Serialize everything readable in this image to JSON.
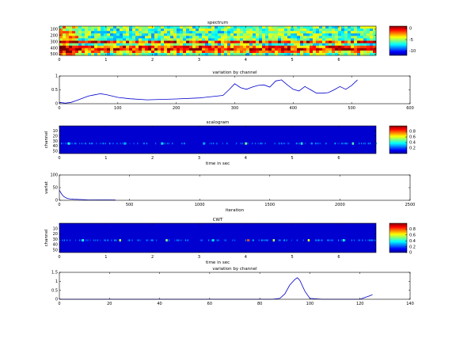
{
  "chart_data": [
    {
      "type": "heatmap",
      "title": "spectrum",
      "xlabel": "",
      "ylabel": "",
      "xlim": [
        0,
        6.8
      ],
      "xticks": [
        0,
        1,
        2,
        3,
        4,
        5,
        6
      ],
      "yticks": [
        100,
        200,
        300,
        400,
        500
      ],
      "ylim": [
        50,
        520
      ],
      "colorbar": {
        "ticks": [
          0,
          -5,
          -10
        ],
        "range": [
          -12,
          1
        ]
      },
      "bands": [
        {
          "y": 300,
          "value": -1
        },
        {
          "y": 390,
          "value": -1
        },
        {
          "y": 430,
          "value": 0
        },
        {
          "y": 470,
          "value": -2
        }
      ]
    },
    {
      "type": "line",
      "title": "variation by channel",
      "xlabel": "",
      "ylabel": "",
      "xlim": [
        0,
        600
      ],
      "ylim": [
        0,
        1
      ],
      "xticks": [
        0,
        100,
        200,
        300,
        400,
        500,
        600
      ],
      "yticks": [
        0,
        0.5,
        1
      ],
      "series": [
        {
          "x": [
            0,
            10,
            20,
            30,
            40,
            50,
            60,
            70,
            80,
            100,
            120,
            150,
            200,
            240,
            280,
            290,
            300,
            310,
            320,
            330,
            340,
            350,
            360,
            370,
            380,
            390,
            400,
            410,
            420,
            430,
            440,
            450,
            460,
            470,
            480,
            490,
            500,
            510
          ],
          "y": [
            0.05,
            0.02,
            0.05,
            0.12,
            0.2,
            0.28,
            0.32,
            0.36,
            0.33,
            0.23,
            0.18,
            0.14,
            0.17,
            0.21,
            0.3,
            0.5,
            0.72,
            0.58,
            0.52,
            0.6,
            0.66,
            0.68,
            0.6,
            0.82,
            0.86,
            0.68,
            0.52,
            0.46,
            0.62,
            0.5,
            0.38,
            0.38,
            0.4,
            0.5,
            0.62,
            0.52,
            0.66,
            0.86
          ]
        }
      ]
    },
    {
      "type": "heatmap",
      "title": "scalogram",
      "xlabel": "time in sec",
      "ylabel": "channel",
      "xlim": [
        0,
        6.8
      ],
      "xticks": [
        0,
        1,
        2,
        3,
        4,
        5,
        6
      ],
      "yticks": [
        10,
        20,
        30,
        40,
        50
      ],
      "ylim": [
        0,
        55
      ],
      "colorbar": {
        "ticks": [
          0.8,
          0.6,
          0.4,
          0.2
        ],
        "range": [
          0,
          1
        ]
      },
      "events": [
        {
          "x": 0.2,
          "y": 35,
          "value": 0.4
        },
        {
          "x": 1.4,
          "y": 35,
          "value": 0.3
        },
        {
          "x": 2.2,
          "y": 35,
          "value": 0.35
        },
        {
          "x": 3.1,
          "y": 35,
          "value": 0.3
        },
        {
          "x": 4.0,
          "y": 35,
          "value": 0.5
        },
        {
          "x": 5.2,
          "y": 35,
          "value": 0.4
        },
        {
          "x": 6.3,
          "y": 35,
          "value": 0.45
        }
      ]
    },
    {
      "type": "line",
      "title": "",
      "xlabel": "iteration",
      "ylabel": "varlat",
      "xlim": [
        0,
        2500
      ],
      "ylim": [
        0,
        100
      ],
      "xticks": [
        0,
        500,
        1000,
        1500,
        2000,
        2500
      ],
      "yticks": [
        0,
        50,
        100
      ],
      "series": [
        {
          "x": [
            0,
            10,
            20,
            30,
            40,
            50,
            60,
            80,
            100,
            150,
            200,
            300,
            400
          ],
          "y": [
            40,
            30,
            22,
            16,
            12,
            9,
            7,
            5,
            4,
            3,
            2,
            1.5,
            1
          ]
        }
      ]
    },
    {
      "type": "heatmap",
      "title": "CWT",
      "xlabel": "time in sec",
      "ylabel": "channel",
      "xlim": [
        0,
        6.8
      ],
      "xticks": [
        0,
        1,
        2,
        3,
        4,
        5,
        6
      ],
      "yticks": [
        10,
        20,
        30,
        40,
        50
      ],
      "ylim": [
        0,
        55
      ],
      "colorbar": {
        "ticks": [
          0.8,
          0.6,
          0.4,
          0.2,
          0
        ],
        "range": [
          0,
          1
        ]
      },
      "events": [
        {
          "x": 0.5,
          "y": 32,
          "value": 0.4
        },
        {
          "x": 1.3,
          "y": 32,
          "value": 0.55
        },
        {
          "x": 2.3,
          "y": 32,
          "value": 0.5
        },
        {
          "x": 3.3,
          "y": 32,
          "value": 0.35
        },
        {
          "x": 4.05,
          "y": 32,
          "value": 0.8
        },
        {
          "x": 4.6,
          "y": 32,
          "value": 0.55
        },
        {
          "x": 5.35,
          "y": 32,
          "value": 0.6
        },
        {
          "x": 6.1,
          "y": 32,
          "value": 0.4
        }
      ]
    },
    {
      "type": "line",
      "title": "variation by channel",
      "xlabel": "",
      "ylabel": "",
      "xlim": [
        0,
        140
      ],
      "ylim": [
        0,
        1.5
      ],
      "xticks": [
        0,
        20,
        40,
        60,
        80,
        100,
        120,
        140
      ],
      "yticks": [
        0,
        0.5,
        1,
        1.5
      ],
      "series": [
        {
          "x": [
            0,
            60,
            85,
            88,
            90,
            92,
            94,
            95,
            96,
            98,
            100,
            105,
            115,
            118,
            120,
            121,
            122,
            123,
            124,
            125
          ],
          "y": [
            0,
            0,
            0,
            0.05,
            0.3,
            0.8,
            1.1,
            1.2,
            1.05,
            0.45,
            0.05,
            0,
            0,
            0,
            0,
            0.05,
            0.1,
            0.15,
            0.2,
            0.25
          ]
        }
      ]
    }
  ]
}
